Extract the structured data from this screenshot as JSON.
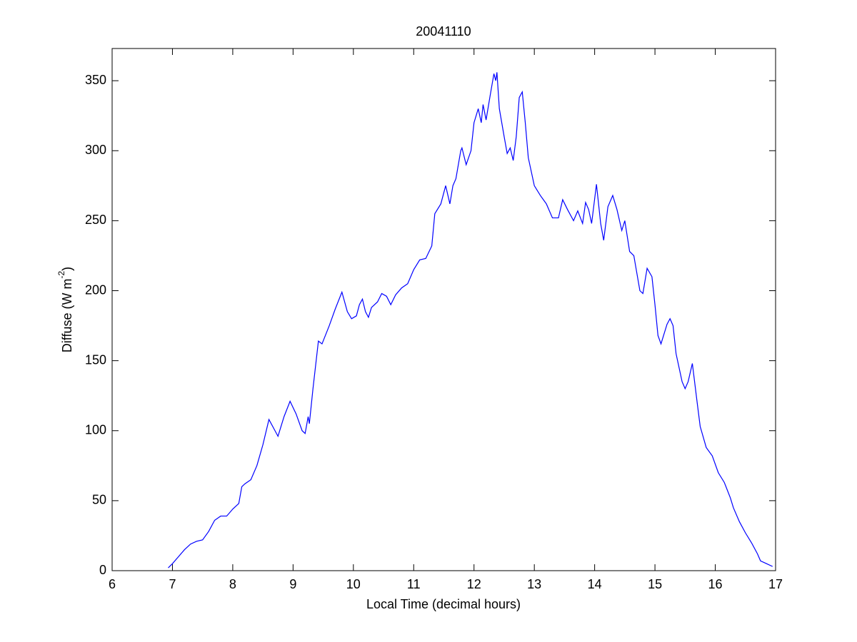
{
  "chart_data": {
    "type": "line",
    "title": "20041110",
    "x_label": "Local Time (decimal hours)",
    "y_label_parts": [
      "Diffuse (W m",
      "-2",
      ")"
    ],
    "x": [
      6.93,
      7.0,
      7.1,
      7.2,
      7.3,
      7.4,
      7.5,
      7.6,
      7.7,
      7.8,
      7.9,
      8.0,
      8.1,
      8.15,
      8.2,
      8.3,
      8.4,
      8.5,
      8.6,
      8.7,
      8.75,
      8.85,
      8.95,
      9.05,
      9.15,
      9.2,
      9.25,
      9.27,
      9.33,
      9.42,
      9.48,
      9.6,
      9.7,
      9.81,
      9.9,
      9.97,
      10.05,
      10.1,
      10.15,
      10.2,
      10.25,
      10.3,
      10.4,
      10.47,
      10.55,
      10.62,
      10.7,
      10.8,
      10.9,
      11.0,
      11.1,
      11.2,
      11.3,
      11.35,
      11.45,
      11.53,
      11.6,
      11.65,
      11.7,
      11.78,
      11.8,
      11.87,
      11.95,
      12.0,
      12.07,
      12.12,
      12.15,
      12.2,
      12.27,
      12.33,
      12.36,
      12.38,
      12.42,
      12.5,
      12.55,
      12.6,
      12.65,
      12.7,
      12.75,
      12.8,
      12.85,
      12.9,
      13.0,
      13.1,
      13.2,
      13.3,
      13.4,
      13.47,
      13.55,
      13.65,
      13.72,
      13.8,
      13.85,
      13.9,
      13.95,
      14.03,
      14.1,
      14.15,
      14.22,
      14.3,
      14.37,
      14.45,
      14.5,
      14.58,
      14.65,
      14.75,
      14.8,
      14.87,
      14.95,
      15.0,
      15.05,
      15.1,
      15.2,
      15.25,
      15.3,
      15.35,
      15.45,
      15.5,
      15.55,
      15.62,
      15.7,
      15.75,
      15.85,
      15.95,
      16.05,
      16.15,
      16.25,
      16.3,
      16.4,
      16.5,
      16.6,
      16.7,
      16.75,
      16.85,
      16.95
    ],
    "series": [
      {
        "color": "#0000ff",
        "values": [
          2,
          5,
          10,
          15,
          19,
          21,
          22,
          28,
          36,
          39,
          39,
          44,
          48,
          60,
          62,
          65,
          75,
          90,
          108,
          100,
          96,
          110,
          121,
          112,
          100,
          98,
          110,
          105,
          130,
          164,
          162,
          175,
          187,
          199,
          185,
          180,
          182,
          190,
          194,
          185,
          181,
          188,
          192,
          198,
          196,
          190,
          197,
          202,
          205,
          215,
          222,
          223,
          232,
          255,
          262,
          275,
          262,
          275,
          280,
          300,
          302,
          290,
          300,
          320,
          330,
          320,
          333,
          322,
          340,
          355,
          350,
          356,
          330,
          310,
          298,
          302,
          293,
          310,
          338,
          342,
          320,
          295,
          275,
          268,
          262,
          252,
          252,
          265,
          258,
          250,
          257,
          248,
          263,
          258,
          248,
          276,
          248,
          236,
          260,
          268,
          258,
          243,
          250,
          228,
          225,
          200,
          198,
          216,
          210,
          190,
          168,
          162,
          176,
          180,
          175,
          155,
          135,
          130,
          135,
          148,
          120,
          103,
          88,
          82,
          70,
          63,
          52,
          45,
          35,
          27,
          20,
          12,
          7,
          5,
          3
        ]
      }
    ],
    "xlim": [
      6,
      17
    ],
    "xticks": [
      6,
      7,
      8,
      9,
      10,
      11,
      12,
      13,
      14,
      15,
      16,
      17
    ],
    "ylim": [
      0,
      373
    ],
    "yticks": [
      0,
      50,
      100,
      150,
      200,
      250,
      300,
      350
    ],
    "grid": false
  }
}
